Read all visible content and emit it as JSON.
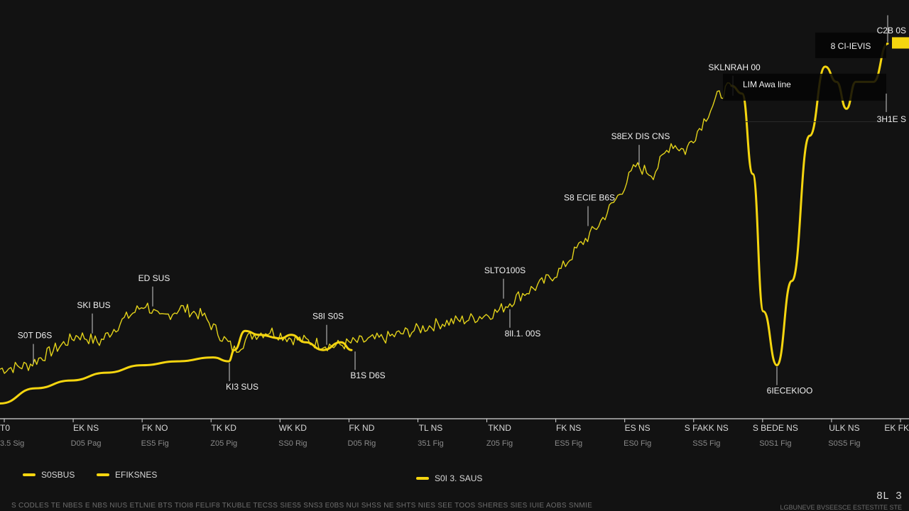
{
  "chart_data": {
    "type": "line",
    "x_categories": [
      {
        "label": "T0",
        "sub": "3.5 Sig"
      },
      {
        "label": "EK NS",
        "sub": "D05 Pag"
      },
      {
        "label": "FK NO",
        "sub": "ES5 Fig"
      },
      {
        "label": "TK KD",
        "sub": "Z05 Pig"
      },
      {
        "label": "WK KD",
        "sub": "SS0 Rig"
      },
      {
        "label": "FK ND",
        "sub": "D05 Rig"
      },
      {
        "label": "TL NS",
        "sub": "351 Fig"
      },
      {
        "label": "TKND",
        "sub": "Z05 Fig"
      },
      {
        "label": "FK NS",
        "sub": "ES5 Fig"
      },
      {
        "label": "ES NS",
        "sub": "ES0 Fig"
      },
      {
        "label": "S FAKK NS",
        "sub": "SS5 Fig"
      },
      {
        "label": "S BEDE NS",
        "sub": "S0S1 Fig"
      },
      {
        "label": "ULK NS",
        "sub": "S0S5 Fig"
      },
      {
        "label": "EK FK",
        "sub": ""
      }
    ],
    "xlim": [
      0,
      1280
    ],
    "ylim": [
      0,
      100
    ],
    "grid": false,
    "series": [
      {
        "color": "#e3d21a",
        "style": "noisy",
        "points": [
          [
            0,
            12.7
          ],
          [
            40,
            13.7
          ],
          [
            75,
            17.6
          ],
          [
            110,
            21.5
          ],
          [
            140,
            19.6
          ],
          [
            175,
            25.5
          ],
          [
            205,
            29.4
          ],
          [
            225,
            25.5
          ],
          [
            255,
            28.4
          ],
          [
            285,
            26.5
          ],
          [
            310,
            21.5
          ],
          [
            330,
            17.6
          ],
          [
            355,
            21.5
          ],
          [
            380,
            22.5
          ],
          [
            410,
            20.6
          ],
          [
            440,
            19.6
          ],
          [
            470,
            18.6
          ],
          [
            500,
            19.6
          ],
          [
            540,
            20.6
          ],
          [
            580,
            22.5
          ],
          [
            620,
            24.5
          ],
          [
            660,
            25.5
          ],
          [
            700,
            27.4
          ],
          [
            730,
            31.4
          ],
          [
            760,
            34.3
          ],
          [
            790,
            38.2
          ],
          [
            815,
            44.1
          ],
          [
            840,
            49.0
          ],
          [
            870,
            56.9
          ],
          [
            895,
            64.7
          ],
          [
            920,
            62.7
          ],
          [
            945,
            70.6
          ],
          [
            965,
            68.6
          ],
          [
            985,
            74.5
          ],
          [
            1010,
            82.4
          ],
          [
            1030,
            85.3
          ]
        ]
      },
      {
        "color": "#f5d50f",
        "style": "smooth",
        "points": [
          [
            0,
            3.9
          ],
          [
            50,
            7.8
          ],
          [
            100,
            9.8
          ],
          [
            150,
            11.8
          ],
          [
            200,
            13.7
          ],
          [
            250,
            14.7
          ],
          [
            300,
            15.7
          ],
          [
            322,
            14.7
          ],
          [
            330,
            17.6
          ],
          [
            345,
            22.5
          ],
          [
            365,
            21.5
          ],
          [
            395,
            20.6
          ],
          [
            410,
            21.5
          ],
          [
            430,
            19.6
          ],
          [
            455,
            17.6
          ],
          [
            480,
            19.6
          ],
          [
            495,
            17.6
          ],
          [
            1030,
            85.3
          ],
          [
            1045,
            83.3
          ],
          [
            1060,
            62.7
          ],
          [
            1075,
            27.5
          ],
          [
            1094,
            13.7
          ],
          [
            1115,
            35.3
          ],
          [
            1140,
            72.5
          ],
          [
            1162,
            90.2
          ],
          [
            1178,
            86.3
          ],
          [
            1192,
            79.4
          ],
          [
            1205,
            86.3
          ],
          [
            1230,
            86.3
          ],
          [
            1250,
            96.1
          ]
        ]
      }
    ],
    "annotations": [
      {
        "text": "S0T D6S",
        "x": 47,
        "y": 13.7,
        "pos": "above"
      },
      {
        "text": "SKI BUS",
        "x": 130,
        "y": 21.5,
        "pos": "above"
      },
      {
        "text": "ED SUS",
        "x": 215,
        "y": 28.4,
        "pos": "above"
      },
      {
        "text": "KI3 SUS",
        "x": 323,
        "y": 14.7,
        "pos": "below"
      },
      {
        "text": "S8I S0S",
        "x": 460,
        "y": 18.6,
        "pos": "above"
      },
      {
        "text": "B1S D6S",
        "x": 500,
        "y": 17.6,
        "pos": "below"
      },
      {
        "text": "SLTO100S",
        "x": 709,
        "y": 30.4,
        "pos": "above"
      },
      {
        "text": "8lI.1. 00S",
        "x": 718,
        "y": 28.4,
        "pos": "below"
      },
      {
        "text": "S8 ECIE B6S",
        "x": 828,
        "y": 49.0,
        "pos": "above"
      },
      {
        "text": "S8EX DIS CNS",
        "x": 900,
        "y": 64.7,
        "pos": "above"
      },
      {
        "text": "SKLNRAH 00",
        "x": 1032,
        "y": 82.4,
        "pos": "above"
      },
      {
        "text": "LIM Awa line",
        "x": 1040,
        "y": 83.3,
        "pos": "box"
      },
      {
        "text": "8 CI-IEVIS",
        "x": 1160,
        "y": 90.2,
        "pos": "box-top"
      },
      {
        "text": "6IECEKIOO",
        "x": 1094,
        "y": 13.7,
        "pos": "below"
      },
      {
        "text": "C2B 0S",
        "x": 1250,
        "y": 96.1,
        "pos": "top"
      },
      {
        "text": "3H1E S",
        "x": 1248,
        "y": 83.3,
        "pos": "right-below"
      }
    ],
    "last_value_tag": {
      "text": "",
      "color": "#f5d50f"
    }
  },
  "legend": [
    {
      "label": "S0SBUS",
      "color": "#f5d50f"
    },
    {
      "label": "EFIKSNES",
      "color": "#f5d50f"
    },
    {
      "label": "S0I 3. SAUS",
      "color": "#f5d50f"
    }
  ],
  "footer": "S CODLES TE NBES  E NBS NIUS ETLNIE BTS TIOI8 FELIF8 TKUBLE TECSS SIES5 SNS3 E0BS NUI SHSS NE SHTS NIES SEE TOOS SHERES SIES IUIE AOBS SNMIE",
  "corner": "8L  3",
  "corner_sub": "LGBUNEVE BVSEESCE ESTESTITE STE"
}
